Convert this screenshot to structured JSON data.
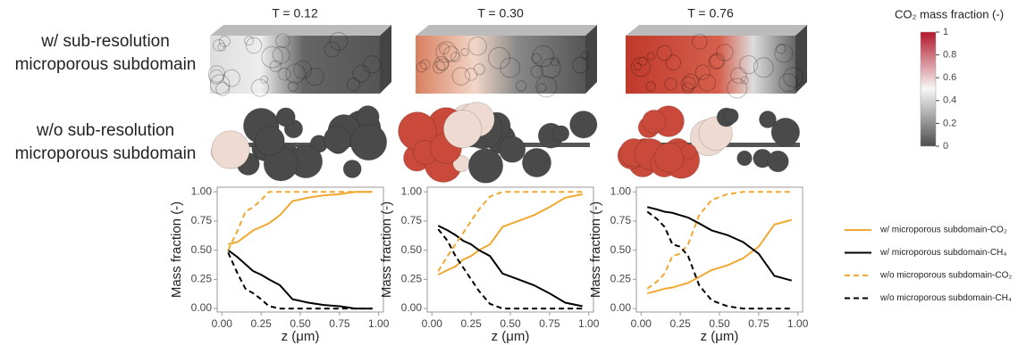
{
  "panels": {
    "rows": [
      "w/ sub-resolution microporous subdomain",
      "w/o sub-resolution microporous subdomain"
    ],
    "times": [
      "T = 0.12",
      "T = 0.30",
      "T = 0.76"
    ]
  },
  "colorbar": {
    "title": "CO₂ mass fraction (-)",
    "lim": [
      0,
      1
    ],
    "ticks": [
      0,
      0.2,
      0.4,
      0.6,
      0.8,
      1
    ]
  },
  "chart_data": [
    {
      "type": "line",
      "xlabel": "z (μm)",
      "ylabel": "Mass fraction (-)",
      "x": [
        0.04,
        0.1,
        0.15,
        0.2,
        0.25,
        0.3,
        0.37,
        0.45,
        0.55,
        0.65,
        0.75,
        0.85,
        0.96
      ],
      "xlim": [
        -0.03,
        1.03
      ],
      "ylim": [
        -0.03,
        1.04
      ],
      "xticks": [
        {
          "value": 0,
          "label": "0.00"
        },
        {
          "value": 0.25,
          "label": "0.25"
        },
        {
          "value": 0.5,
          "label": "0.50"
        },
        {
          "value": 0.75,
          "label": "0.75"
        },
        {
          "value": 1,
          "label": "1.00"
        }
      ],
      "yticks": [
        {
          "value": 0,
          "label": "0.00"
        },
        {
          "value": 0.25,
          "label": "0.25"
        },
        {
          "value": 0.5,
          "label": "0.50"
        },
        {
          "value": 0.75,
          "label": "0.75"
        },
        {
          "value": 1,
          "label": "1.00"
        }
      ],
      "series": [
        {
          "name": "w/ microporous subdomain-CO₂",
          "color": "#f0a830",
          "dash": false,
          "values": [
            0.55,
            0.57,
            0.62,
            0.67,
            0.7,
            0.73,
            0.8,
            0.92,
            0.95,
            0.97,
            0.98,
            1.0,
            1.0
          ]
        },
        {
          "name": "w/ microporous subdomain-CH₄",
          "color": "#000000",
          "dash": false,
          "values": [
            0.5,
            0.44,
            0.38,
            0.32,
            0.29,
            0.25,
            0.2,
            0.08,
            0.05,
            0.03,
            0.02,
            0.0,
            0.0
          ]
        },
        {
          "name": "w/o microporous subdomain-CO₂",
          "color": "#f0a830",
          "dash": true,
          "values": [
            0.5,
            0.67,
            0.83,
            0.87,
            0.93,
            1.0,
            1.0,
            1.0,
            1.0,
            1.0,
            1.0,
            1.0,
            1.0
          ]
        },
        {
          "name": "w/o microporous subdomain-CH₄",
          "color": "#000000",
          "dash": true,
          "values": [
            0.48,
            0.3,
            0.17,
            0.13,
            0.08,
            0.02,
            0.0,
            0.0,
            0.0,
            0.0,
            0.0,
            0.0,
            0.0
          ]
        }
      ]
    },
    {
      "type": "line",
      "xlabel": "z (μm)",
      "ylabel": "Mass fraction (-)",
      "x": [
        0.04,
        0.1,
        0.15,
        0.2,
        0.25,
        0.3,
        0.37,
        0.45,
        0.55,
        0.65,
        0.75,
        0.85,
        0.96
      ],
      "xlim": [
        -0.03,
        1.03
      ],
      "ylim": [
        -0.03,
        1.04
      ],
      "xticks": [
        {
          "value": 0,
          "label": "0.00"
        },
        {
          "value": 0.25,
          "label": "0.25"
        },
        {
          "value": 0.5,
          "label": "0.50"
        },
        {
          "value": 0.75,
          "label": "0.75"
        },
        {
          "value": 1,
          "label": "1.00"
        }
      ],
      "yticks": [
        {
          "value": 0,
          "label": "0.00"
        },
        {
          "value": 0.25,
          "label": "0.25"
        },
        {
          "value": 0.5,
          "label": "0.50"
        },
        {
          "value": 0.75,
          "label": "0.75"
        },
        {
          "value": 1,
          "label": "1.00"
        }
      ],
      "series": [
        {
          "color": "#f0a830",
          "dash": false,
          "values": [
            0.29,
            0.33,
            0.36,
            0.42,
            0.45,
            0.5,
            0.55,
            0.7,
            0.75,
            0.8,
            0.87,
            0.95,
            0.98
          ]
        },
        {
          "color": "#000000",
          "dash": false,
          "values": [
            0.71,
            0.67,
            0.63,
            0.58,
            0.55,
            0.5,
            0.45,
            0.3,
            0.25,
            0.2,
            0.13,
            0.05,
            0.02
          ]
        },
        {
          "color": "#f0a830",
          "dash": true,
          "values": [
            0.32,
            0.45,
            0.55,
            0.65,
            0.75,
            0.85,
            0.96,
            1.0,
            1.0,
            1.0,
            1.0,
            1.0,
            1.0
          ]
        },
        {
          "color": "#000000",
          "dash": true,
          "values": [
            0.68,
            0.58,
            0.45,
            0.35,
            0.25,
            0.15,
            0.04,
            0.0,
            0.0,
            0.0,
            0.0,
            0.0,
            0.0
          ]
        }
      ]
    },
    {
      "type": "line",
      "xlabel": "z (μm)",
      "ylabel": "Mass fraction (-)",
      "x": [
        0.04,
        0.1,
        0.15,
        0.2,
        0.25,
        0.3,
        0.37,
        0.45,
        0.55,
        0.65,
        0.75,
        0.85,
        0.96
      ],
      "xlim": [
        -0.03,
        1.03
      ],
      "ylim": [
        -0.03,
        1.04
      ],
      "xticks": [
        {
          "value": 0,
          "label": "0.00"
        },
        {
          "value": 0.25,
          "label": "0.25"
        },
        {
          "value": 0.5,
          "label": "0.50"
        },
        {
          "value": 0.75,
          "label": "0.75"
        },
        {
          "value": 1,
          "label": "1.00"
        }
      ],
      "yticks": [
        {
          "value": 0,
          "label": "0.00"
        },
        {
          "value": 0.25,
          "label": "0.25"
        },
        {
          "value": 0.5,
          "label": "0.50"
        },
        {
          "value": 0.75,
          "label": "0.75"
        },
        {
          "value": 1,
          "label": "1.00"
        }
      ],
      "series": [
        {
          "color": "#f0a830",
          "dash": false,
          "values": [
            0.13,
            0.15,
            0.17,
            0.18,
            0.2,
            0.22,
            0.27,
            0.33,
            0.37,
            0.43,
            0.53,
            0.72,
            0.76
          ]
        },
        {
          "color": "#000000",
          "dash": false,
          "values": [
            0.87,
            0.85,
            0.83,
            0.82,
            0.8,
            0.78,
            0.73,
            0.67,
            0.63,
            0.57,
            0.47,
            0.28,
            0.24
          ]
        },
        {
          "color": "#f0a830",
          "dash": true,
          "values": [
            0.17,
            0.23,
            0.3,
            0.45,
            0.47,
            0.55,
            0.8,
            0.93,
            0.98,
            1.0,
            1.0,
            1.0,
            1.0
          ]
        },
        {
          "color": "#000000",
          "dash": true,
          "values": [
            0.83,
            0.77,
            0.7,
            0.55,
            0.53,
            0.45,
            0.2,
            0.07,
            0.02,
            0.0,
            0.0,
            0.0,
            0.0
          ]
        }
      ]
    }
  ]
}
